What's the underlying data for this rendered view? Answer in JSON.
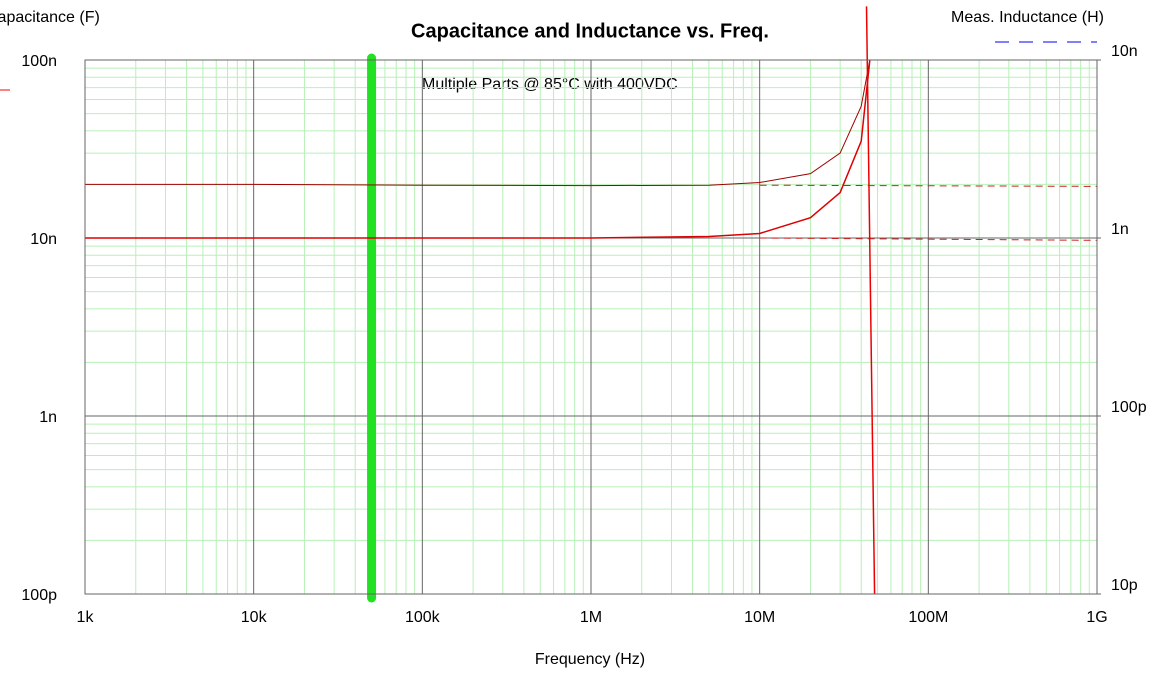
{
  "chart_data": {
    "type": "line",
    "title": "Capacitance and Inductance vs. Freq.",
    "annotation": "Multiple Parts @ 85°C with 400VDC",
    "x_label": "Frequency (Hz)",
    "y_label": "Capacitance (F)",
    "y2_label": "Meas. Inductance (H)",
    "y_label_color": "#ff0000",
    "y2_label_color": "#0000ff",
    "log_x": true,
    "log_y": true,
    "grid": true,
    "xlim": [
      1000,
      1000000000
    ],
    "xticks": [
      {
        "value": 1000,
        "label": "1k"
      },
      {
        "value": 10000,
        "label": "10k"
      },
      {
        "value": 100000,
        "label": "100k"
      },
      {
        "value": 1000000,
        "label": "1M"
      },
      {
        "value": 10000000,
        "label": "10M"
      },
      {
        "value": 100000000,
        "label": "100M"
      },
      {
        "value": 1000000000,
        "label": "1G"
      }
    ],
    "ylim": [
      1e-10,
      1e-07
    ],
    "yticks": [
      {
        "value": 1e-10,
        "label": "100p"
      },
      {
        "value": 1e-09,
        "label": "1n"
      },
      {
        "value": 1e-08,
        "label": "10n"
      },
      {
        "value": 1e-07,
        "label": "100n"
      }
    ],
    "y2lim": [
      1e-11,
      1e-08
    ],
    "y2ticks": [
      {
        "value": 1e-11,
        "label": "10p"
      },
      {
        "value": 1e-10,
        "label": "100p"
      },
      {
        "value": 1e-09,
        "label": "1n"
      },
      {
        "value": 1e-08,
        "label": "10n"
      }
    ],
    "marker_x": 50000,
    "marker_color": "#22e022",
    "series": [
      {
        "color": "#a00000",
        "width": 1,
        "x": [
          1000,
          10000,
          100000,
          1000000,
          5000000,
          10000000,
          20000000,
          30000000,
          40000000,
          45000000
        ],
        "values": [
          2e-08,
          2e-08,
          1.98e-08,
          1.97e-08,
          1.98e-08,
          2.05e-08,
          2.3e-08,
          3e-08,
          5.5e-08,
          1e-07
        ]
      },
      {
        "color": "#dd0000",
        "width": 1.5,
        "x": [
          1000,
          10000,
          100000,
          1000000,
          5000000,
          10000000,
          20000000,
          30000000,
          40000000,
          45000000
        ],
        "values": [
          1e-08,
          1e-08,
          1e-08,
          1e-08,
          1.02e-08,
          1.06e-08,
          1.3e-08,
          1.8e-08,
          3.5e-08,
          1e-07
        ]
      },
      {
        "color": "#cc2020",
        "width": 1,
        "dash": true,
        "x": [
          10000000,
          1000000000
        ],
        "values": [
          1.98e-08,
          1.95e-08
        ]
      },
      {
        "color": "#cc2020",
        "width": 1,
        "dash": true,
        "x": [
          10000000,
          1000000000
        ],
        "values": [
          1e-08,
          9.7e-09
        ]
      },
      {
        "color": "#ee0000",
        "width": 1.5,
        "x": [
          43000000,
          48000000
        ],
        "values": [
          2e-07,
          1e-10
        ]
      }
    ]
  }
}
